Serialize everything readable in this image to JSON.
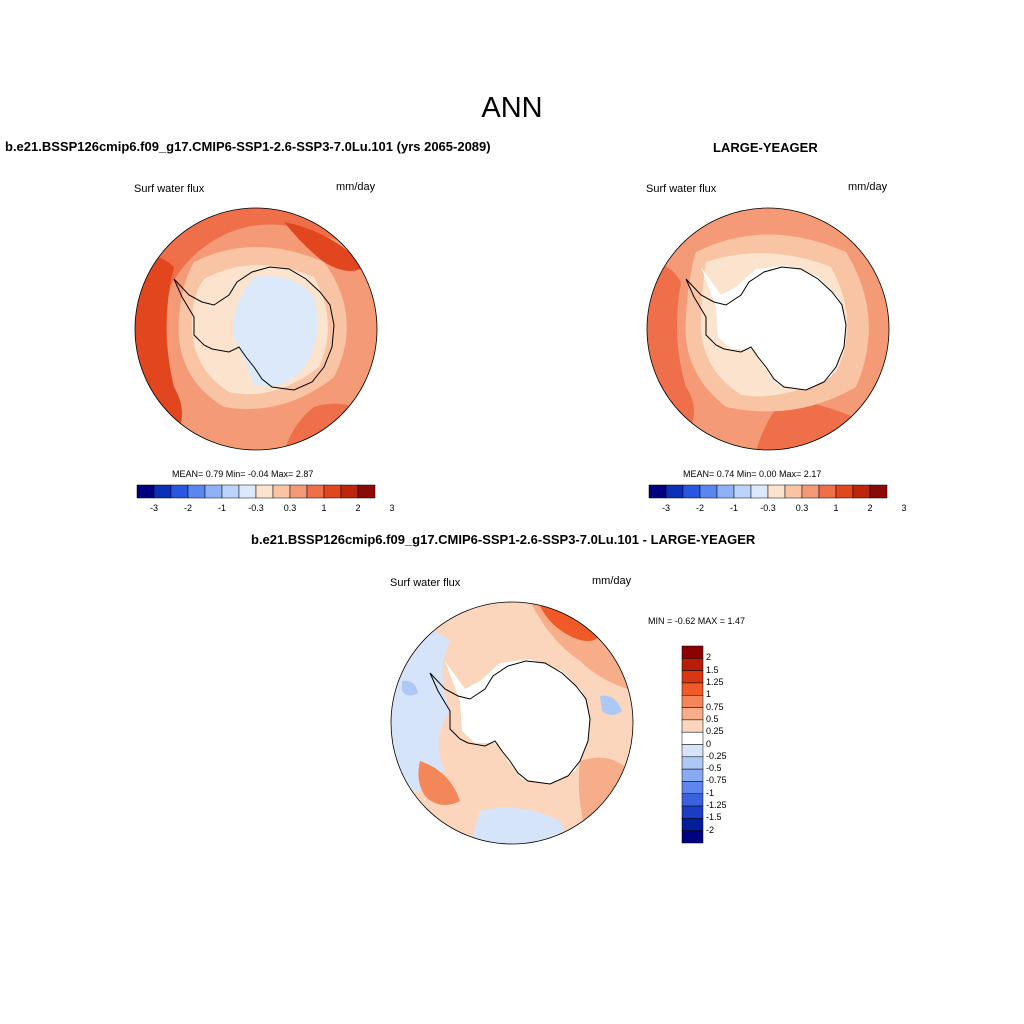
{
  "title": "ANN",
  "units": "mm/day",
  "variable": "Surf water flux",
  "panels": [
    {
      "id": "test",
      "header": "b.e21.BSSP126cmip6.f09_g17.CMIP6-SSP1-2.6-SSP3-7.0Lu.101 (yrs 2065-2089)",
      "variable": "Surf water flux",
      "units": "mm/day",
      "stats": "MEAN=   0.79  Min=  -0.04  Max=   2.87",
      "mean": 0.79,
      "min": -0.04,
      "max": 2.87,
      "colorbar_labels": [
        "-3",
        "-2",
        "-1",
        "-0.3",
        "0.3",
        "1",
        "2",
        "3"
      ]
    },
    {
      "id": "reference",
      "header": "LARGE-YEAGER",
      "variable": "Surf water flux",
      "units": "mm/day",
      "stats": "MEAN=   0.74  Min=   0.00  Max=   2.17",
      "mean": 0.74,
      "min": 0.0,
      "max": 2.17,
      "colorbar_labels": [
        "-3",
        "-2",
        "-1",
        "-0.3",
        "0.3",
        "1",
        "2",
        "3"
      ]
    },
    {
      "id": "difference",
      "header": "b.e21.BSSP126cmip6.f09_g17.CMIP6-SSP1-2.6-SSP3-7.0Lu.101 - LARGE-YEAGER",
      "variable": "Surf water flux",
      "units": "mm/day",
      "stats": "MIN =  -0.62 MAX =   1.47",
      "min": -0.62,
      "max": 1.47,
      "colorbar_labels": [
        "2",
        "1.5",
        "1.25",
        "1",
        "0.75",
        "0.5",
        "0.25",
        "0",
        "-0.25",
        "-0.5",
        "-0.75",
        "-1",
        "-1.25",
        "-1.5",
        "-2"
      ]
    }
  ],
  "colors": {
    "abs_scale": [
      "#00007f",
      "#0b2fb6",
      "#2a55e0",
      "#5a86f0",
      "#8fb1f8",
      "#bed3fb",
      "#dbe9fb",
      "#fbe3cd",
      "#f9c4a3",
      "#f49a76",
      "#ee6f4a",
      "#e1461f",
      "#bd250d",
      "#8b0a05"
    ],
    "diff_scale": [
      "#8b0000",
      "#b61e07",
      "#d83712",
      "#ef5a28",
      "#f4875a",
      "#f8ad8a",
      "#fbd6bd",
      "#ffffff",
      "#d6e4fa",
      "#aec8f5",
      "#89aaf0",
      "#5f86ea",
      "#3a62dd",
      "#1c3cc4",
      "#041e9a",
      "#000080"
    ]
  }
}
